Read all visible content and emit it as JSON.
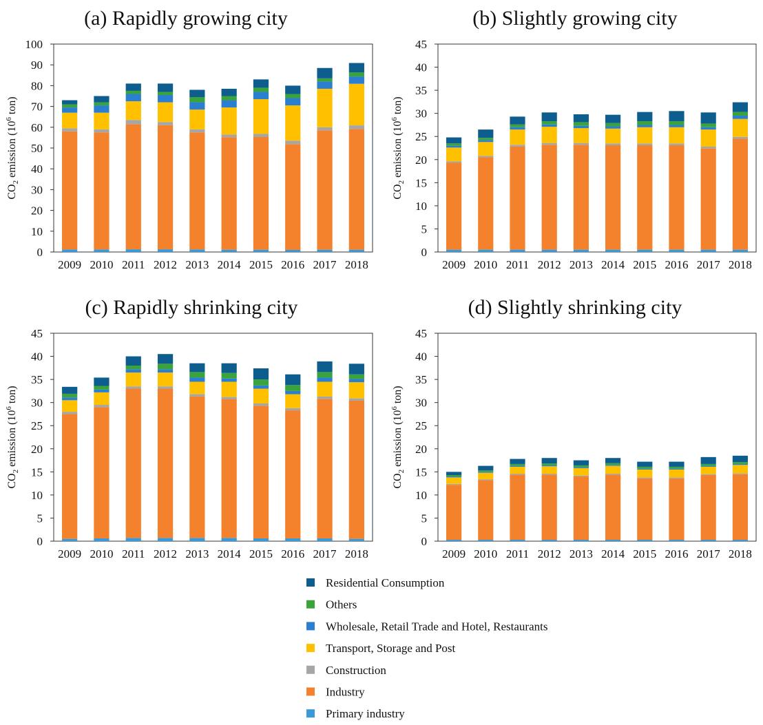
{
  "chart_data": [
    {
      "type": "bar",
      "stacked": true,
      "title": "(a) Rapidly growing city",
      "ylabel_prefix": "CO",
      "ylabel_sub": "2",
      "ylabel_mid": " emission (10",
      "ylabel_sup": "6",
      "ylabel_suffix": " ton)",
      "ylim": [
        0,
        100
      ],
      "yticks": [
        0,
        10,
        20,
        30,
        40,
        50,
        60,
        70,
        80,
        90,
        100
      ],
      "categories": [
        "2009",
        "2010",
        "2011",
        "2012",
        "2013",
        "2014",
        "2015",
        "2016",
        "2017",
        "2018"
      ],
      "series": [
        {
          "name": "Primary industry",
          "values": [
            1.2,
            1.2,
            1.3,
            1.3,
            1.2,
            1.1,
            1.1,
            1.0,
            1.1,
            1.1
          ]
        },
        {
          "name": "Industry",
          "values": [
            56.8,
            56.3,
            60.2,
            59.7,
            56.3,
            54.1,
            54.2,
            50.9,
            57.4,
            58.1
          ]
        },
        {
          "name": "Construction",
          "values": [
            1.5,
            1.5,
            2.0,
            1.5,
            1.5,
            1.3,
            1.5,
            1.6,
            1.5,
            1.7
          ]
        },
        {
          "name": "Transport, Storage and Post",
          "values": [
            7.5,
            8.0,
            9.0,
            9.5,
            9.5,
            13.0,
            16.7,
            17.0,
            18.5,
            20.0
          ]
        },
        {
          "name": "Wholesale, Retail Trade and Hotel, Restaurants",
          "values": [
            2.5,
            3.5,
            3.5,
            3.5,
            3.5,
            3.5,
            3.5,
            3.5,
            3.5,
            3.5
          ]
        },
        {
          "name": "Others",
          "values": [
            1.5,
            1.5,
            1.5,
            1.5,
            2.5,
            2.0,
            2.0,
            2.0,
            1.5,
            2.0
          ]
        },
        {
          "name": "Residential Consumption",
          "values": [
            2.0,
            3.0,
            3.5,
            4.0,
            3.5,
            3.5,
            4.0,
            4.0,
            5.0,
            4.5
          ]
        }
      ]
    },
    {
      "type": "bar",
      "stacked": true,
      "title": "(b) Slightly growing city",
      "ylabel_prefix": "CO",
      "ylabel_sub": "2",
      "ylabel_mid": " emission (10",
      "ylabel_sup": "6",
      "ylabel_suffix": " ton)",
      "ylim": [
        0,
        45
      ],
      "yticks": [
        0,
        5,
        10,
        15,
        20,
        25,
        30,
        35,
        40,
        45
      ],
      "categories": [
        "2009",
        "2010",
        "2011",
        "2012",
        "2013",
        "2014",
        "2015",
        "2016",
        "2017",
        "2018"
      ],
      "series": [
        {
          "name": "Primary industry",
          "values": [
            0.5,
            0.5,
            0.5,
            0.5,
            0.5,
            0.5,
            0.5,
            0.5,
            0.5,
            0.5
          ]
        },
        {
          "name": "Industry",
          "values": [
            18.8,
            20.0,
            22.3,
            22.7,
            22.7,
            22.6,
            22.6,
            22.6,
            21.9,
            24.0
          ]
        },
        {
          "name": "Construction",
          "values": [
            0.3,
            0.3,
            0.4,
            0.4,
            0.4,
            0.4,
            0.4,
            0.4,
            0.4,
            0.4
          ]
        },
        {
          "name": "Transport, Storage and Post",
          "values": [
            3.0,
            3.0,
            3.3,
            3.5,
            3.2,
            3.2,
            3.5,
            3.5,
            3.7,
            3.9
          ]
        },
        {
          "name": "Wholesale, Retail Trade and Hotel, Restaurants",
          "values": [
            0.4,
            0.4,
            0.5,
            0.5,
            0.5,
            0.5,
            0.5,
            0.5,
            0.5,
            0.7
          ]
        },
        {
          "name": "Others",
          "values": [
            0.5,
            0.5,
            0.6,
            0.7,
            0.8,
            0.7,
            0.8,
            0.8,
            0.8,
            0.8
          ]
        },
        {
          "name": "Residential Consumption",
          "values": [
            1.3,
            1.8,
            1.7,
            1.9,
            1.7,
            1.8,
            2.0,
            2.2,
            2.4,
            2.1
          ]
        }
      ]
    },
    {
      "type": "bar",
      "stacked": true,
      "title": "(c) Rapidly shrinking city",
      "ylabel_prefix": "CO",
      "ylabel_sub": "2",
      "ylabel_mid": " emission (10",
      "ylabel_sup": "6",
      "ylabel_suffix": " ton)",
      "ylim": [
        0,
        45
      ],
      "yticks": [
        0,
        5,
        10,
        15,
        20,
        25,
        30,
        35,
        40,
        45
      ],
      "categories": [
        "2009",
        "2010",
        "2011",
        "2012",
        "2013",
        "2014",
        "2015",
        "2016",
        "2017",
        "2018"
      ],
      "series": [
        {
          "name": "Primary industry",
          "values": [
            0.5,
            0.6,
            0.7,
            0.7,
            0.7,
            0.7,
            0.6,
            0.6,
            0.6,
            0.5
          ]
        },
        {
          "name": "Industry",
          "values": [
            27.0,
            28.4,
            32.3,
            32.3,
            30.6,
            30.0,
            28.7,
            27.7,
            30.2,
            29.9
          ]
        },
        {
          "name": "Construction",
          "values": [
            0.5,
            0.5,
            0.5,
            0.5,
            0.5,
            0.5,
            0.5,
            0.5,
            0.5,
            0.5
          ]
        },
        {
          "name": "Transport, Storage and Post",
          "values": [
            2.5,
            2.7,
            3.0,
            3.0,
            2.7,
            3.3,
            3.2,
            3.0,
            3.2,
            3.5
          ]
        },
        {
          "name": "Wholesale, Retail Trade and Hotel, Restaurants",
          "values": [
            0.6,
            0.6,
            0.7,
            0.7,
            0.9,
            0.7,
            0.7,
            0.7,
            0.9,
            0.7
          ]
        },
        {
          "name": "Others",
          "values": [
            0.8,
            0.8,
            0.8,
            1.2,
            1.2,
            1.2,
            1.3,
            1.3,
            1.2,
            1.0
          ]
        },
        {
          "name": "Residential Consumption",
          "values": [
            1.5,
            1.8,
            2.0,
            2.1,
            1.9,
            2.1,
            2.4,
            2.3,
            2.3,
            2.3
          ]
        }
      ]
    },
    {
      "type": "bar",
      "stacked": true,
      "title": "(d) Slightly shrinking city",
      "ylabel_prefix": "CO",
      "ylabel_sub": "2",
      "ylabel_mid": " emission (10",
      "ylabel_sup": "6",
      "ylabel_suffix": " ton)",
      "ylim": [
        0,
        45
      ],
      "yticks": [
        0,
        5,
        10,
        15,
        20,
        25,
        30,
        35,
        40,
        45
      ],
      "categories": [
        "2009",
        "2010",
        "2011",
        "2012",
        "2013",
        "2014",
        "2015",
        "2016",
        "2017",
        "2018"
      ],
      "series": [
        {
          "name": "Primary industry",
          "values": [
            0.3,
            0.3,
            0.3,
            0.3,
            0.3,
            0.3,
            0.3,
            0.3,
            0.3,
            0.3
          ]
        },
        {
          "name": "Industry",
          "values": [
            11.9,
            12.9,
            14.1,
            14.1,
            13.7,
            14.1,
            13.3,
            13.3,
            14.0,
            14.2
          ]
        },
        {
          "name": "Construction",
          "values": [
            0.2,
            0.2,
            0.2,
            0.2,
            0.2,
            0.2,
            0.2,
            0.2,
            0.2,
            0.2
          ]
        },
        {
          "name": "Transport, Storage and Post",
          "values": [
            1.4,
            1.4,
            1.5,
            1.6,
            1.6,
            1.7,
            1.7,
            1.7,
            1.6,
            1.8
          ]
        },
        {
          "name": "Wholesale, Retail Trade and Hotel, Restaurants",
          "values": [
            0.2,
            0.2,
            0.2,
            0.2,
            0.2,
            0.2,
            0.2,
            0.2,
            0.2,
            0.2
          ]
        },
        {
          "name": "Others",
          "values": [
            0.3,
            0.3,
            0.4,
            0.4,
            0.4,
            0.4,
            0.4,
            0.4,
            0.4,
            0.4
          ]
        },
        {
          "name": "Residential Consumption",
          "values": [
            0.7,
            1.0,
            1.1,
            1.2,
            1.1,
            1.1,
            1.1,
            1.1,
            1.5,
            1.4
          ]
        }
      ]
    }
  ],
  "legend": {
    "items": [
      {
        "name": "Residential Consumption",
        "color": "#0d5d8e"
      },
      {
        "name": "Others",
        "color": "#3aa33c"
      },
      {
        "name": "Wholesale, Retail Trade and Hotel, Restaurants",
        "color": "#2a7fd0"
      },
      {
        "name": "Transport, Storage and Post",
        "color": "#ffc000"
      },
      {
        "name": "Construction",
        "color": "#a6a6a6"
      },
      {
        "name": "Industry",
        "color": "#f4812c"
      },
      {
        "name": "Primary industry",
        "color": "#3a9ad9"
      }
    ]
  }
}
